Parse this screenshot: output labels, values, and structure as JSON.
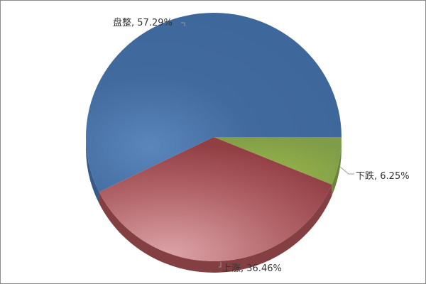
{
  "chart_data": {
    "type": "pie",
    "style": "3d",
    "start": "3 o'clock, clockwise",
    "slices": [
      {
        "label": "下跌, 6.25%",
        "name": "下跌",
        "value": 6.25,
        "color": "#7f9c48"
      },
      {
        "label": "上涨, 36.46%",
        "name": "上涨",
        "value": 36.46,
        "color": "#9b4a4e"
      },
      {
        "label": "盘整, 57.29%",
        "name": "盘整",
        "value": 57.29,
        "color": "#416a9e"
      }
    ]
  }
}
